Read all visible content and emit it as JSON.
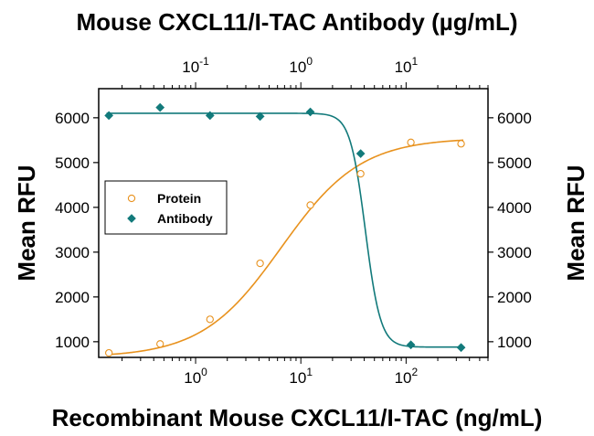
{
  "chart_data": {
    "type": "scatter",
    "title": "Mouse CXCL11/I-TAC Antibody (µg/mL)",
    "xlabel": "Recombinant Mouse CXCL11/I-TAC (ng/mL)",
    "ylabel_left": "Mean RFU",
    "ylabel_right": "Mean RFU",
    "x_scale": "log",
    "xlim": [
      0.12,
      600
    ],
    "ylim": [
      650,
      6650
    ],
    "y_ticks": [
      1000,
      2000,
      3000,
      4000,
      5000,
      6000
    ],
    "x_ticks_bottom": [
      {
        "value": 1,
        "base": "10",
        "exp": "0"
      },
      {
        "value": 10,
        "base": "10",
        "exp": "1"
      },
      {
        "value": 100,
        "base": "10",
        "exp": "2"
      }
    ],
    "x2_scale": "log",
    "x2lim": [
      0.012,
      60
    ],
    "x_ticks_top": [
      {
        "value": 0.1,
        "base": "10",
        "exp": "-1"
      },
      {
        "value": 1,
        "base": "10",
        "exp": "0"
      },
      {
        "value": 10,
        "base": "10",
        "exp": "1"
      }
    ],
    "legend_placement": "left",
    "grid": false,
    "series": [
      {
        "name": "Protein",
        "axis": "bottom",
        "marker": "circle-open",
        "color": "#e8921e",
        "x": [
          0.15,
          0.46,
          1.37,
          4.1,
          12.3,
          37,
          111,
          333
        ],
        "y": [
          750,
          950,
          1500,
          2750,
          4050,
          4750,
          5450,
          5420
        ],
        "fit": {
          "model": "4PL",
          "bottom": 650,
          "top": 5550,
          "ec50": 6.5,
          "hill": 1.15
        }
      },
      {
        "name": "Antibody",
        "axis": "top",
        "marker": "diamond-filled",
        "color": "#127a7b",
        "x": [
          0.015,
          0.046,
          0.137,
          0.41,
          1.23,
          3.7,
          11.1,
          33.3
        ],
        "y": [
          6050,
          6230,
          6050,
          6030,
          6130,
          5200,
          930,
          870
        ],
        "fit": {
          "model": "4PL",
          "bottom": 880,
          "top": 6100,
          "ic50": 4.1,
          "hill": 6
        }
      }
    ]
  }
}
